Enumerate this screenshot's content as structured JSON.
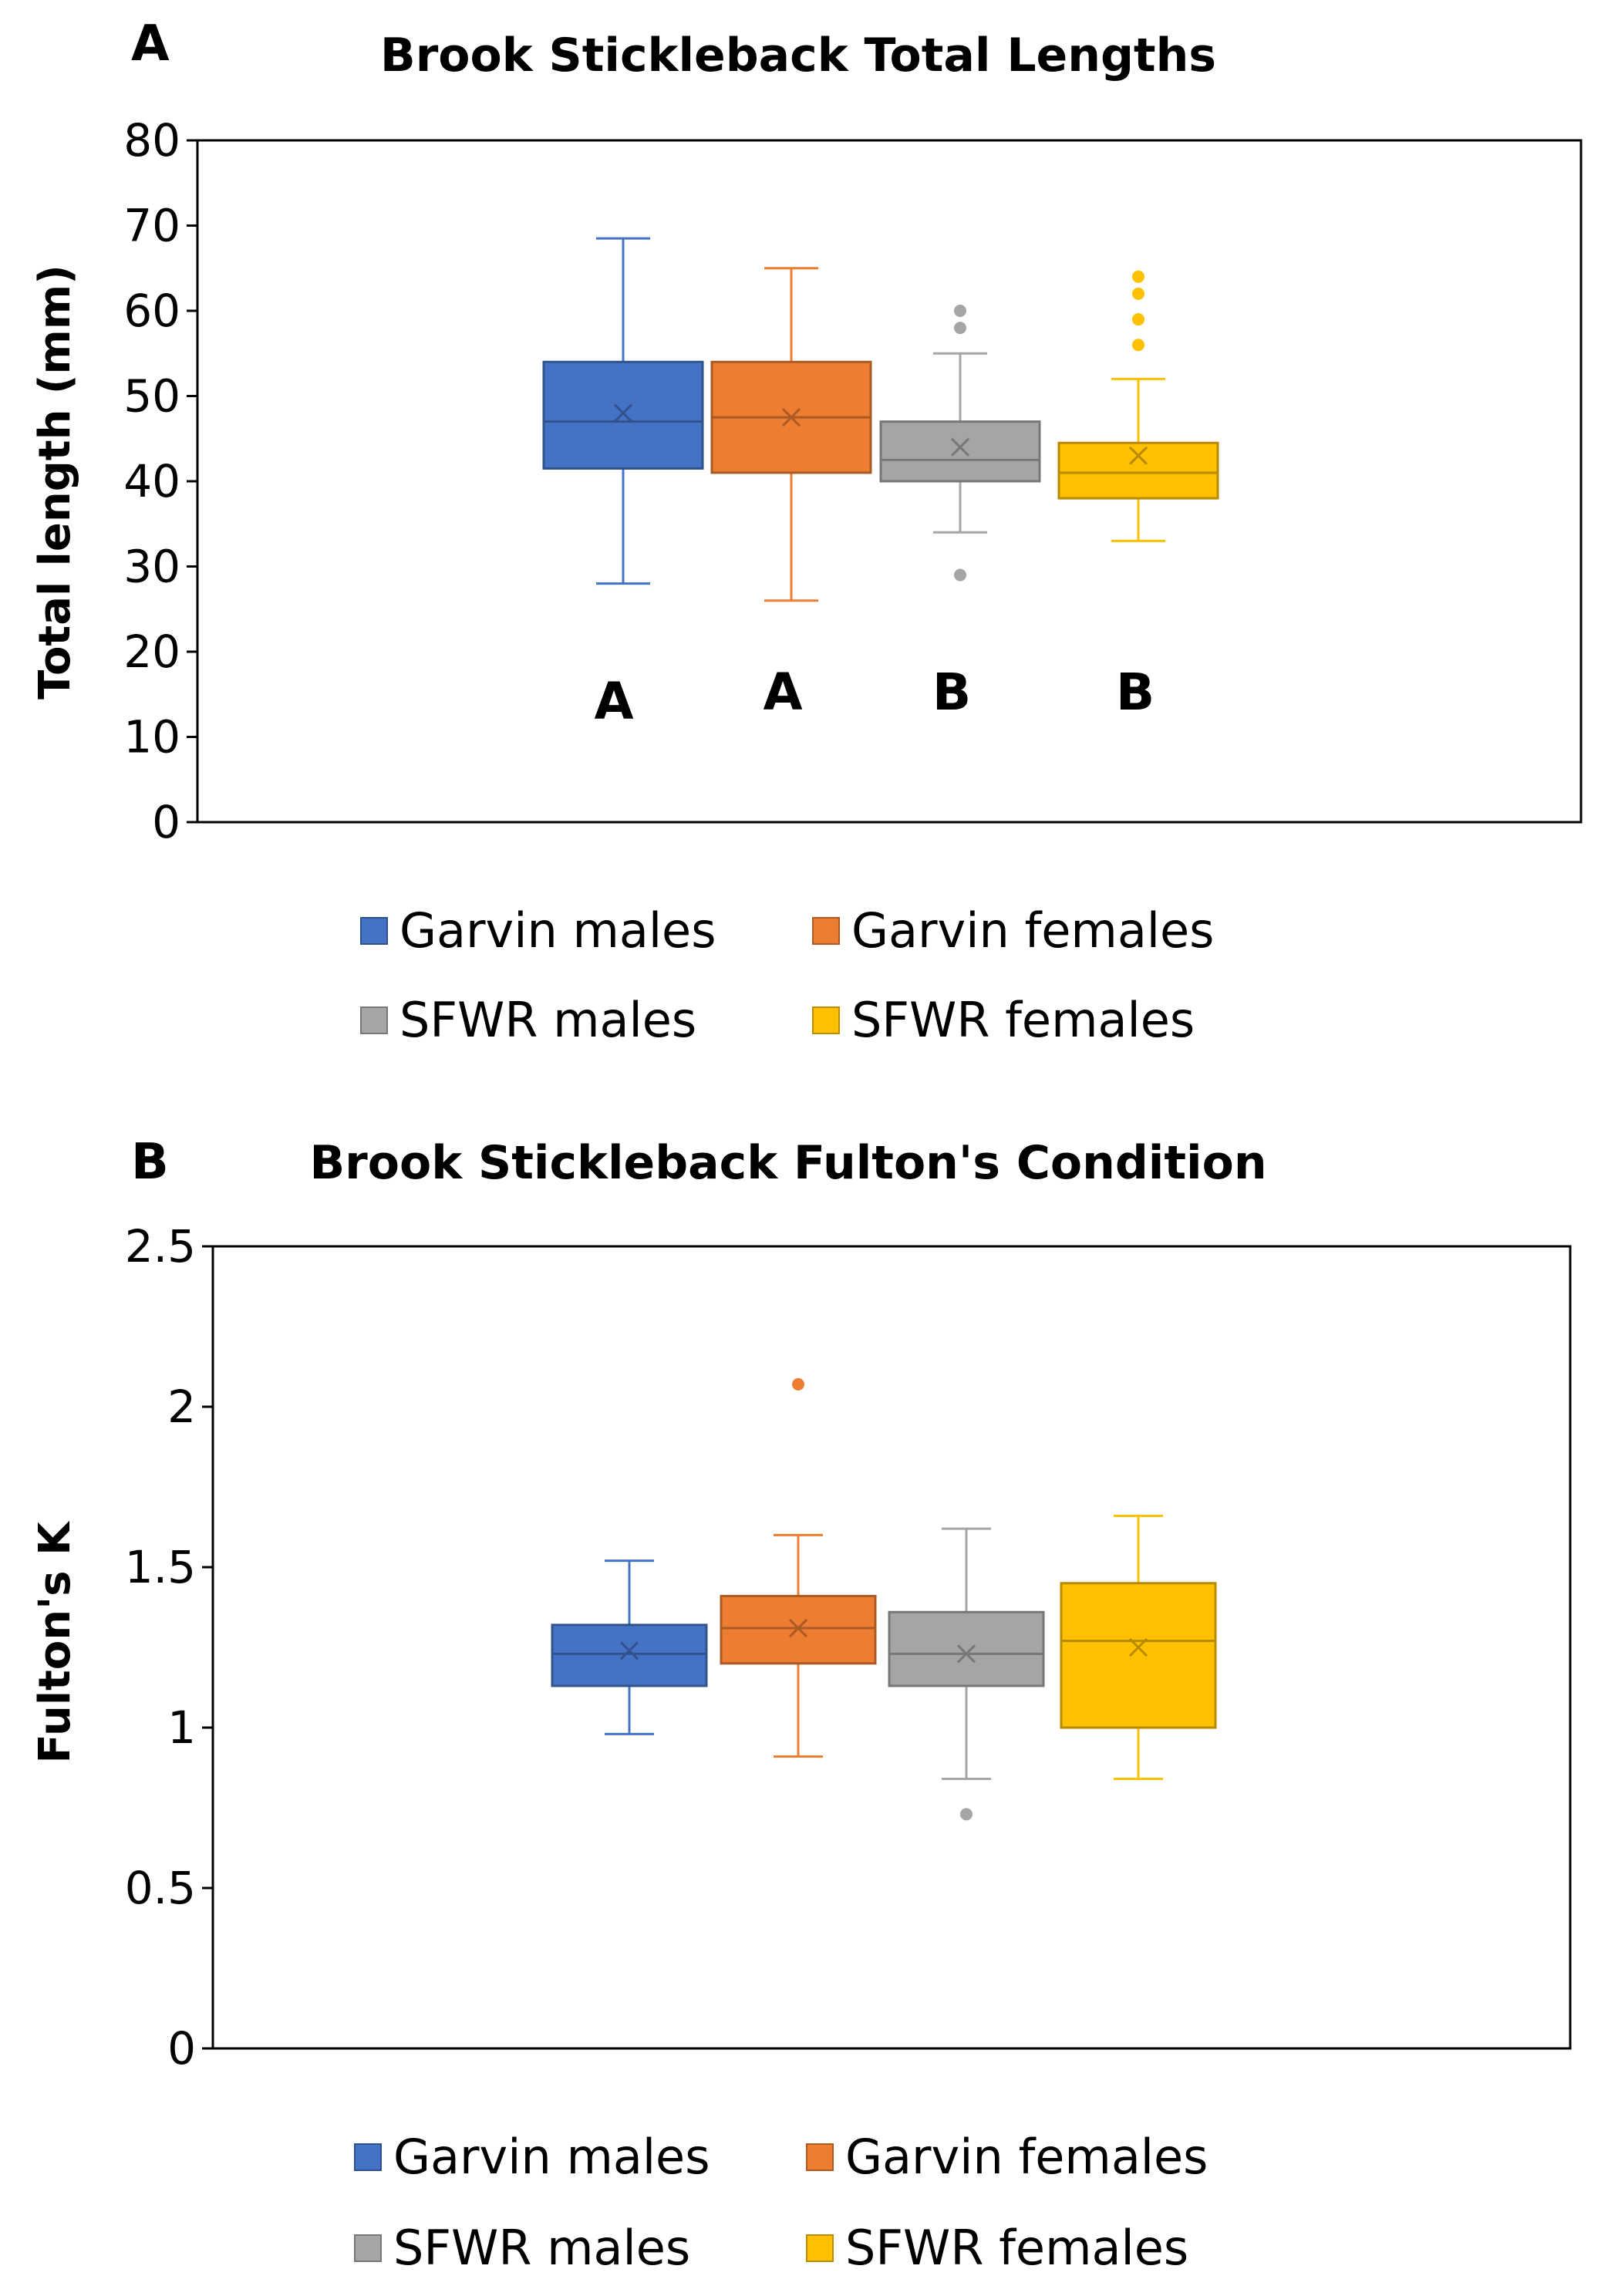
{
  "chart_data": [
    {
      "type": "box",
      "panel": "A",
      "title": "Brook Stickleback Total Lengths",
      "ylabel": "Total length (mm)",
      "xlabel": "",
      "ylim": [
        0,
        80
      ],
      "yticks": [
        0,
        10,
        20,
        30,
        40,
        50,
        60,
        70,
        80
      ],
      "legend": {
        "position": "bottom",
        "entries": [
          "Garvin males",
          "Garvin females",
          "SFWR males",
          "SFWR females"
        ]
      },
      "series": [
        {
          "name": "Garvin males",
          "color": "#4472C4",
          "min": 28,
          "q1": 41.5,
          "median": 47,
          "q3": 54,
          "max": 68.5,
          "mean": 48,
          "outliers": [],
          "group_label": "A"
        },
        {
          "name": "Garvin females",
          "color": "#ED7D31",
          "min": 26,
          "q1": 41,
          "median": 47.5,
          "q3": 54,
          "max": 65,
          "mean": 47.5,
          "outliers": [],
          "group_label": "A"
        },
        {
          "name": "SFWR males",
          "color": "#A5A5A5",
          "min": 34,
          "q1": 40,
          "median": 42.5,
          "q3": 47,
          "max": 55,
          "mean": 44,
          "outliers": [
            29,
            58,
            60
          ],
          "group_label": "B"
        },
        {
          "name": "SFWR females",
          "color": "#FFC000",
          "min": 33,
          "q1": 38,
          "median": 41,
          "q3": 44.5,
          "max": 52,
          "mean": 43,
          "outliers": [
            56,
            59,
            62,
            64
          ],
          "group_label": "B"
        }
      ]
    },
    {
      "type": "box",
      "panel": "B",
      "title": "Brook Stickleback Fulton's Condition",
      "ylabel": "Fulton's K",
      "xlabel": "",
      "ylim": [
        0,
        2.5
      ],
      "yticks": [
        0,
        0.5,
        1,
        1.5,
        2,
        2.5
      ],
      "legend": {
        "position": "bottom",
        "entries": [
          "Garvin males",
          "Garvin females",
          "SFWR males",
          "SFWR females"
        ]
      },
      "series": [
        {
          "name": "Garvin males",
          "color": "#4472C4",
          "min": 0.98,
          "q1": 1.13,
          "median": 1.23,
          "q3": 1.32,
          "max": 1.52,
          "mean": 1.24,
          "outliers": []
        },
        {
          "name": "Garvin females",
          "color": "#ED7D31",
          "min": 0.91,
          "q1": 1.2,
          "median": 1.31,
          "q3": 1.41,
          "max": 1.6,
          "mean": 1.31,
          "outliers": [
            2.07
          ]
        },
        {
          "name": "SFWR males",
          "color": "#A5A5A5",
          "min": 0.84,
          "q1": 1.13,
          "median": 1.23,
          "q3": 1.36,
          "max": 1.62,
          "mean": 1.23,
          "outliers": [
            0.73
          ]
        },
        {
          "name": "SFWR females",
          "color": "#FFC000",
          "min": 0.84,
          "q1": 1.0,
          "median": 1.27,
          "q3": 1.45,
          "max": 1.66,
          "mean": 1.25,
          "outliers": []
        }
      ]
    }
  ]
}
